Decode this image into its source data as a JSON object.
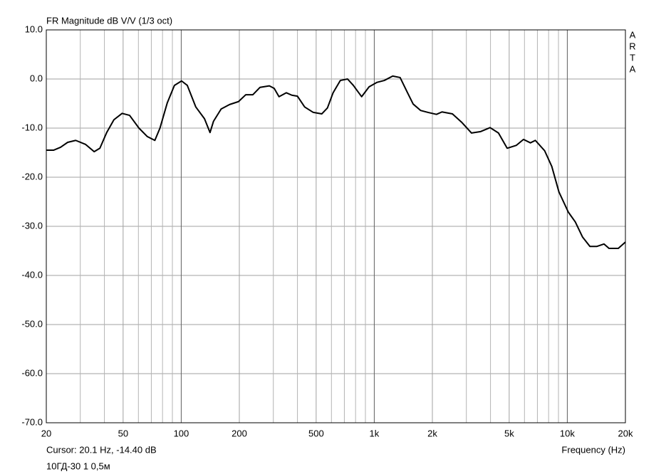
{
  "chart_data": {
    "type": "line",
    "title": "FR Magnitude dB V/V (1/3 oct)",
    "brand": [
      "A",
      "R",
      "T",
      "A"
    ],
    "cursor": "Cursor: 20.1 Hz, -14.40 dB",
    "subtitle": "10ГД-30 1 0,5м",
    "x_label": "Frequency (Hz)",
    "x_scale": "log",
    "grid": true,
    "xlim": [
      20,
      20000
    ],
    "ylim": [
      -70,
      10
    ],
    "xticks": [
      20,
      50,
      100,
      200,
      500,
      {
        "value": 1000,
        "label": "1k"
      },
      {
        "value": 2000,
        "label": "2k"
      },
      {
        "value": 5000,
        "label": "5k"
      },
      {
        "value": 10000,
        "label": "10k"
      },
      {
        "value": 20000,
        "label": "20k"
      }
    ],
    "xgrid_minor": [
      30,
      40,
      60,
      70,
      80,
      90,
      300,
      400,
      600,
      700,
      800,
      900,
      3000,
      4000,
      6000,
      7000,
      8000,
      9000
    ],
    "yticks": [
      {
        "value": 10,
        "label": "10.0"
      },
      {
        "value": 0,
        "label": "0.0"
      },
      {
        "value": -10,
        "label": "-10.0"
      },
      {
        "value": -20,
        "label": "-20.0"
      },
      {
        "value": -30,
        "label": "-30.0"
      },
      {
        "value": -40,
        "label": "-40.0"
      },
      {
        "value": -50,
        "label": "-50.0"
      },
      {
        "value": -60,
        "label": "-60.0"
      },
      {
        "value": -70,
        "label": "-70.0"
      }
    ],
    "x": [
      20,
      21.8,
      23.7,
      25.8,
      28.4,
      31.9,
      35.4,
      37.9,
      41.1,
      44.8,
      49.4,
      54,
      60.4,
      66.6,
      73,
      77.6,
      84.6,
      92.2,
      100.4,
      107.5,
      119,
      132,
      141,
      147,
      161,
      178,
      198,
      216,
      235,
      256,
      286,
      303,
      321,
      350,
      374,
      400,
      436,
      483,
      535,
      572,
      612,
      667,
      727,
      779,
      860,
      940,
      1030,
      1127,
      1246,
      1361,
      1487,
      1590,
      1737,
      1898,
      2100,
      2243,
      2540,
      2835,
      3190,
      3560,
      3980,
      4400,
      4880,
      5450,
      5930,
      6440,
      6830,
      7630,
      8310,
      9050,
      10120,
      11000,
      12000,
      13100,
      14200,
      15500,
      16450,
      18370,
      20000
    ],
    "series": [
      {
        "name": "FR",
        "color": "#000000",
        "values": [
          -14.5,
          -14.5,
          -13.9,
          -12.9,
          -12.5,
          -13.3,
          -14.8,
          -14.1,
          -10.9,
          -8.3,
          -7.0,
          -7.4,
          -10.0,
          -11.7,
          -12.5,
          -10.0,
          -4.9,
          -1.3,
          -0.4,
          -1.3,
          -5.7,
          -8.1,
          -10.9,
          -8.6,
          -6.1,
          -5.2,
          -4.6,
          -3.2,
          -3.2,
          -1.7,
          -1.4,
          -1.9,
          -3.6,
          -2.8,
          -3.3,
          -3.5,
          -5.7,
          -6.8,
          -7.1,
          -5.9,
          -2.8,
          -0.3,
          0,
          -1.3,
          -3.6,
          -1.6,
          -0.7,
          -0.3,
          0.6,
          0.3,
          -2.8,
          -5.1,
          -6.4,
          -6.8,
          -7.2,
          -6.7,
          -7.1,
          -8.8,
          -11.0,
          -10.7,
          -9.9,
          -11.0,
          -14.1,
          -13.5,
          -12.3,
          -13.0,
          -12.5,
          -14.6,
          -17.8,
          -23.0,
          -27.1,
          -29.1,
          -32.2,
          -34.1,
          -34.1,
          -33.6,
          -34.5,
          -34.5,
          -33.2
        ]
      }
    ]
  }
}
